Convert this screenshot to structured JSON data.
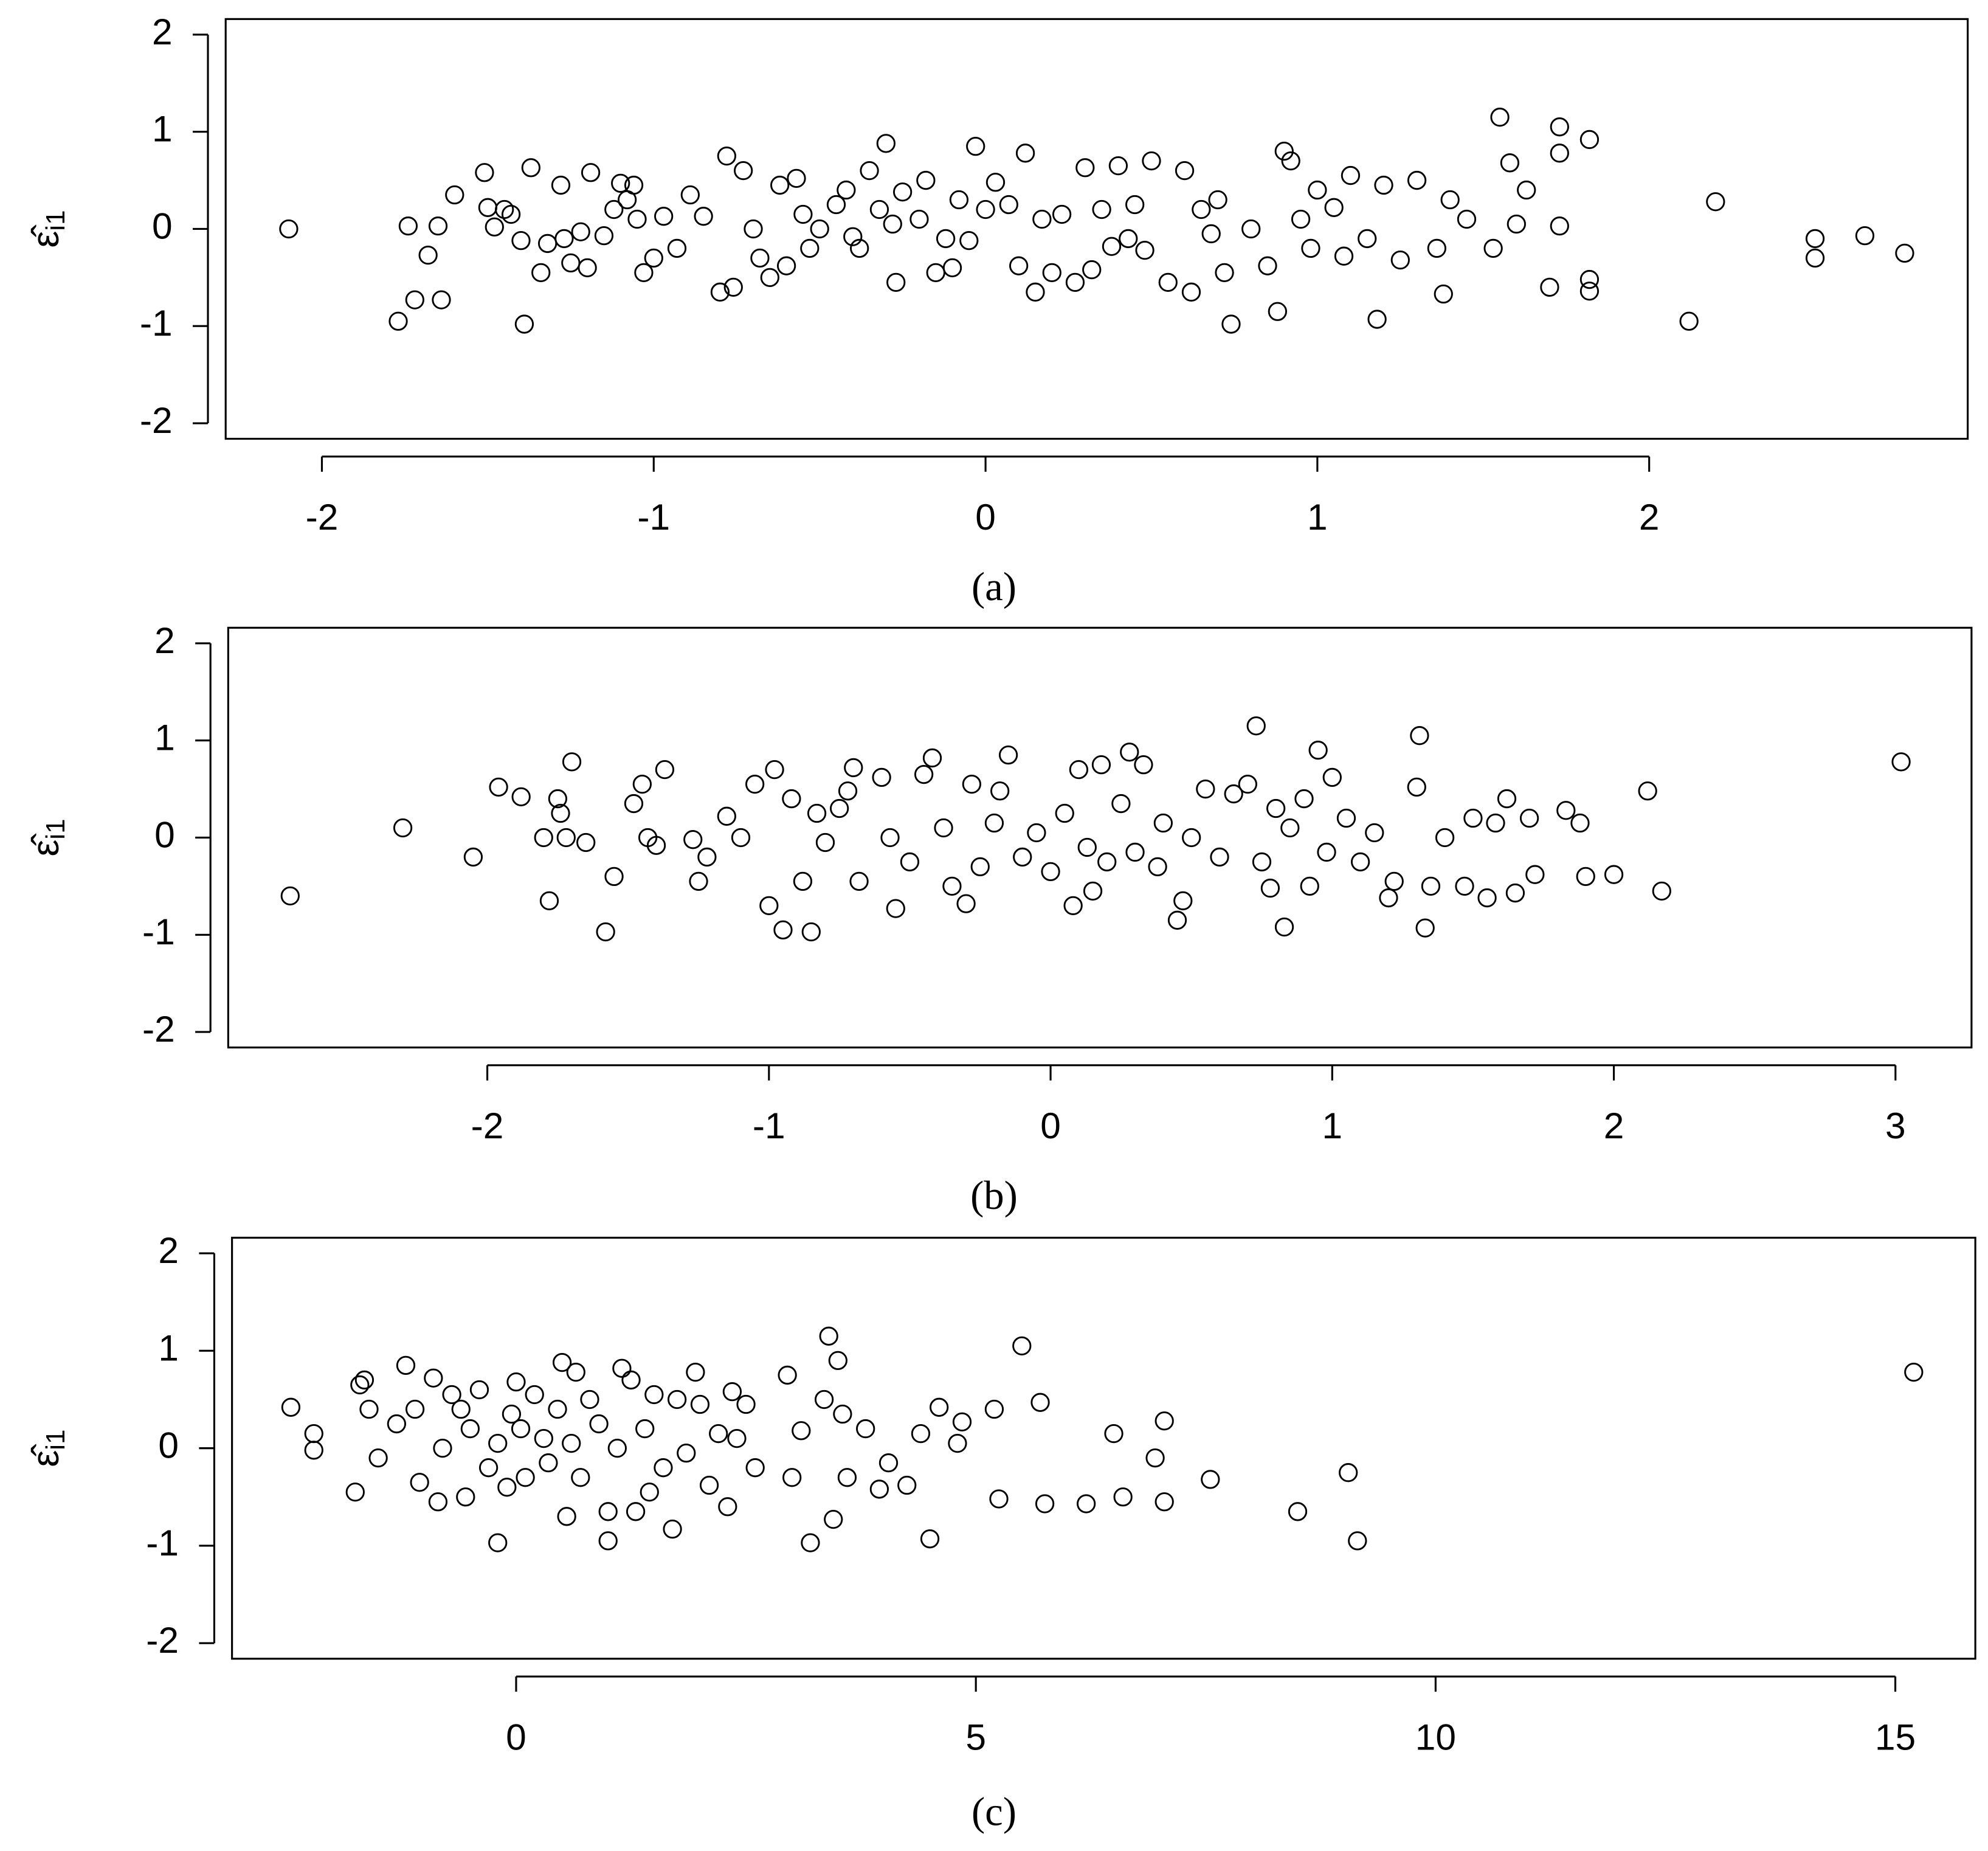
{
  "chart_data": [
    {
      "type": "scatter",
      "caption": "(a)",
      "ylabel": "ε̂",
      "ylabel_subscript": "i1",
      "xlim": [
        -2.29,
        2.96
      ],
      "ylim": [
        -2.16,
        2.16
      ],
      "xticks": [
        -2,
        -1,
        0,
        1,
        2
      ],
      "yticks": [
        -2,
        -1,
        0,
        1,
        2
      ],
      "color": "#000000",
      "x": [
        -2.1,
        -1.77,
        -1.74,
        -1.72,
        -1.68,
        -1.65,
        -1.64,
        -1.6,
        -1.51,
        -1.5,
        -1.48,
        -1.45,
        -1.43,
        -1.4,
        -1.39,
        -1.37,
        -1.34,
        -1.32,
        -1.28,
        -1.27,
        -1.25,
        -1.22,
        -1.2,
        -1.19,
        -1.15,
        -1.12,
        -1.1,
        -1.08,
        -1.06,
        -1.05,
        -1.03,
        -1.0,
        -0.97,
        -0.93,
        -0.89,
        -0.85,
        -0.8,
        -0.78,
        -0.76,
        -0.73,
        -0.7,
        -0.68,
        -0.65,
        -0.62,
        -0.6,
        -0.57,
        -0.55,
        -0.53,
        -0.5,
        -0.45,
        -0.42,
        -0.4,
        -0.38,
        -0.35,
        -0.32,
        -0.3,
        -0.28,
        -0.27,
        -0.25,
        -0.2,
        -0.18,
        -0.15,
        -0.12,
        -0.1,
        -0.08,
        -0.05,
        -0.03,
        0.0,
        0.03,
        0.07,
        0.1,
        0.12,
        0.15,
        0.17,
        0.2,
        0.23,
        0.27,
        0.3,
        0.32,
        0.35,
        0.38,
        0.4,
        0.43,
        0.45,
        0.48,
        0.5,
        0.55,
        0.6,
        0.62,
        0.65,
        0.68,
        0.7,
        0.72,
        0.74,
        0.8,
        0.85,
        0.88,
        0.9,
        0.92,
        0.95,
        0.98,
        1.0,
        1.05,
        1.08,
        1.1,
        1.15,
        1.18,
        1.2,
        1.25,
        1.3,
        1.36,
        1.38,
        1.4,
        1.45,
        1.53,
        1.55,
        1.58,
        1.6,
        1.63,
        1.7,
        1.73,
        1.73,
        1.73,
        1.82,
        1.82,
        1.82,
        2.12,
        2.2,
        2.5,
        2.5,
        2.65,
        2.77
      ],
      "values": [
        0,
        -0.95,
        0.03,
        -0.73,
        -0.27,
        0.03,
        -0.73,
        0.35,
        0.58,
        0.22,
        0.02,
        0.2,
        0.15,
        -0.12,
        -0.98,
        0.63,
        -0.45,
        -0.15,
        0.45,
        -0.1,
        -0.35,
        -0.03,
        -0.4,
        0.58,
        -0.07,
        0.2,
        0.47,
        0.3,
        0.45,
        0.1,
        -0.45,
        -0.3,
        0.13,
        -0.2,
        0.35,
        0.13,
        -0.65,
        0.75,
        -0.6,
        0.6,
        0,
        -0.3,
        -0.5,
        0.45,
        -0.38,
        0.52,
        0.15,
        -0.2,
        0,
        0.25,
        0.4,
        -0.08,
        -0.2,
        0.6,
        0.2,
        0.88,
        0.05,
        -0.55,
        0.38,
        0.1,
        0.5,
        -0.45,
        -0.1,
        -0.4,
        0.3,
        -0.12,
        0.85,
        0.2,
        0.48,
        0.25,
        -0.38,
        0.78,
        -0.65,
        0.1,
        -0.45,
        0.15,
        -0.55,
        0.63,
        -0.42,
        0.2,
        -0.18,
        0.65,
        -0.1,
        0.25,
        -0.22,
        0.7,
        -0.55,
        0.6,
        -0.65,
        0.2,
        -0.05,
        0.3,
        -0.45,
        -0.98,
        0,
        -0.38,
        -0.85,
        0.8,
        0.7,
        0.1,
        -0.2,
        0.4,
        0.22,
        -0.28,
        0.55,
        -0.1,
        -0.93,
        0.45,
        -0.32,
        0.5,
        -0.2,
        -0.67,
        0.3,
        0.1,
        -0.2,
        1.15,
        0.68,
        0.05,
        0.4,
        -0.6,
        1.05,
        0.78,
        0.03,
        0.92,
        -0.64,
        -0.52,
        -0.95,
        0.28,
        -0.3,
        -0.1,
        -0.07,
        -0.25
      ]
    },
    {
      "type": "scatter",
      "caption": "(b)",
      "ylabel": "ε̂",
      "ylabel_subscript": "i1",
      "xlim": [
        -2.92,
        3.27
      ],
      "ylim": [
        -2.16,
        2.16
      ],
      "xticks": [
        -2,
        -1,
        0,
        1,
        2,
        3
      ],
      "yticks": [
        -2,
        -1,
        0,
        1,
        2
      ],
      "color": "#000000",
      "x": [
        -2.7,
        -2.3,
        -2.05,
        -1.96,
        -1.88,
        -1.8,
        -1.78,
        -1.75,
        -1.74,
        -1.72,
        -1.7,
        -1.65,
        -1.58,
        -1.55,
        -1.48,
        -1.45,
        -1.43,
        -1.4,
        -1.37,
        -1.27,
        -1.25,
        -1.22,
        -1.15,
        -1.1,
        -1.05,
        -1.0,
        -0.98,
        -0.95,
        -0.92,
        -0.88,
        -0.85,
        -0.83,
        -0.8,
        -0.75,
        -0.72,
        -0.7,
        -0.68,
        -0.6,
        -0.57,
        -0.55,
        -0.5,
        -0.45,
        -0.42,
        -0.38,
        -0.35,
        -0.3,
        -0.28,
        -0.25,
        -0.2,
        -0.18,
        -0.15,
        -0.1,
        -0.05,
        0.0,
        0.05,
        0.08,
        0.1,
        0.13,
        0.15,
        0.18,
        0.2,
        0.25,
        0.28,
        0.3,
        0.33,
        0.38,
        0.4,
        0.45,
        0.47,
        0.5,
        0.55,
        0.6,
        0.65,
        0.7,
        0.73,
        0.75,
        0.78,
        0.8,
        0.83,
        0.85,
        0.9,
        0.92,
        0.95,
        0.98,
        1.0,
        1.05,
        1.1,
        1.15,
        1.2,
        1.22,
        1.3,
        1.31,
        1.33,
        1.35,
        1.4,
        1.47,
        1.5,
        1.55,
        1.58,
        1.62,
        1.65,
        1.7,
        1.72,
        1.83,
        1.88,
        1.9,
        2.0,
        2.12,
        2.17,
        3.02
      ],
      "values": [
        -0.6,
        0.1,
        -0.2,
        0.52,
        0.42,
        0,
        -0.65,
        0.4,
        0.25,
        0,
        0.78,
        -0.05,
        -0.97,
        -0.4,
        0.35,
        0.55,
        0,
        -0.08,
        0.7,
        -0.02,
        -0.45,
        -0.2,
        0.22,
        0,
        0.55,
        -0.7,
        0.7,
        -0.95,
        0.4,
        -0.45,
        -0.97,
        0.25,
        -0.05,
        0.3,
        0.48,
        0.72,
        -0.45,
        0.62,
        0,
        -0.73,
        -0.25,
        0.65,
        0.82,
        0.1,
        -0.5,
        -0.68,
        0.55,
        -0.3,
        0.15,
        0.48,
        0.85,
        -0.2,
        0.05,
        -0.35,
        0.25,
        -0.7,
        0.7,
        -0.1,
        -0.55,
        0.75,
        -0.25,
        0.35,
        0.88,
        -0.15,
        0.75,
        -0.3,
        0.15,
        -0.85,
        -0.65,
        0,
        0.5,
        -0.2,
        0.45,
        0.55,
        1.15,
        -0.25,
        -0.52,
        0.3,
        -0.92,
        0.1,
        0.4,
        -0.5,
        0.9,
        -0.15,
        0.62,
        0.2,
        -0.25,
        0.05,
        -0.62,
        -0.45,
        0.52,
        1.05,
        -0.93,
        -0.5,
        0,
        -0.5,
        0.2,
        -0.62,
        0.15,
        0.4,
        -0.57,
        0.2,
        -0.38,
        0.28,
        0.15,
        -0.4,
        -0.38,
        0.48,
        -0.55,
        0.78
      ]
    },
    {
      "type": "scatter",
      "caption": "(c)",
      "ylabel": "ε̂",
      "ylabel_subscript": "i1",
      "xlim": [
        -3.09,
        15.87
      ],
      "ylim": [
        -2.16,
        2.16
      ],
      "xticks": [
        0,
        5,
        10,
        15
      ],
      "yticks": [
        -2,
        -1,
        0,
        1,
        2
      ],
      "color": "#000000",
      "x": [
        -2.45,
        -2.2,
        -2.2,
        -1.75,
        -1.7,
        -1.65,
        -1.6,
        -1.5,
        -1.3,
        -1.2,
        -1.1,
        -1.05,
        -0.9,
        -0.85,
        -0.8,
        -0.7,
        -0.6,
        -0.55,
        -0.5,
        -0.4,
        -0.3,
        -0.2,
        -0.1,
        -0.05,
        -0.2,
        0.0,
        0.05,
        0.1,
        0.2,
        0.3,
        0.35,
        0.45,
        0.5,
        0.55,
        0.6,
        0.65,
        0.7,
        0.8,
        0.9,
        1.0,
        1.0,
        1.1,
        1.15,
        1.25,
        1.3,
        1.4,
        1.45,
        1.5,
        1.6,
        1.7,
        1.75,
        1.85,
        1.95,
        2.0,
        2.1,
        2.2,
        2.3,
        2.35,
        2.4,
        2.5,
        2.6,
        2.95,
        3.0,
        3.1,
        3.2,
        3.35,
        3.4,
        3.45,
        3.5,
        3.55,
        3.6,
        3.8,
        3.95,
        4.05,
        4.25,
        4.4,
        4.5,
        4.6,
        4.8,
        4.85,
        5.2,
        5.25,
        5.5,
        5.7,
        5.75,
        6.2,
        6.5,
        6.6,
        6.95,
        7.05,
        7.05,
        7.55,
        8.5,
        9.05,
        9.15,
        15.2
      ],
      "values": [
        0.42,
        0.15,
        -0.02,
        -0.45,
        0.65,
        0.7,
        0.4,
        -0.1,
        0.25,
        0.85,
        0.4,
        -0.35,
        0.72,
        -0.55,
        0,
        0.55,
        0.4,
        -0.5,
        0.2,
        0.6,
        -0.2,
        0.05,
        -0.4,
        0.35,
        -0.97,
        0.68,
        0.2,
        -0.3,
        0.55,
        0.1,
        -0.15,
        0.4,
        0.88,
        -0.7,
        0.05,
        0.78,
        -0.3,
        0.5,
        0.25,
        -0.65,
        -0.95,
        0,
        0.82,
        0.7,
        -0.65,
        0.2,
        -0.45,
        0.55,
        -0.2,
        -0.83,
        0.5,
        -0.05,
        0.78,
        0.45,
        -0.38,
        0.15,
        -0.6,
        0.58,
        0.1,
        0.45,
        -0.2,
        0.75,
        -0.3,
        0.18,
        -0.97,
        0.5,
        1.15,
        -0.73,
        0.9,
        0.35,
        -0.3,
        0.2,
        -0.42,
        -0.15,
        -0.38,
        0.15,
        -0.93,
        0.42,
        0.05,
        0.27,
        0.4,
        -0.52,
        1.05,
        0.47,
        -0.57,
        -0.57,
        0.15,
        -0.5,
        -0.1,
        0.28,
        -0.55,
        -0.32,
        -0.65,
        -0.25,
        -0.95,
        0.78
      ]
    }
  ]
}
